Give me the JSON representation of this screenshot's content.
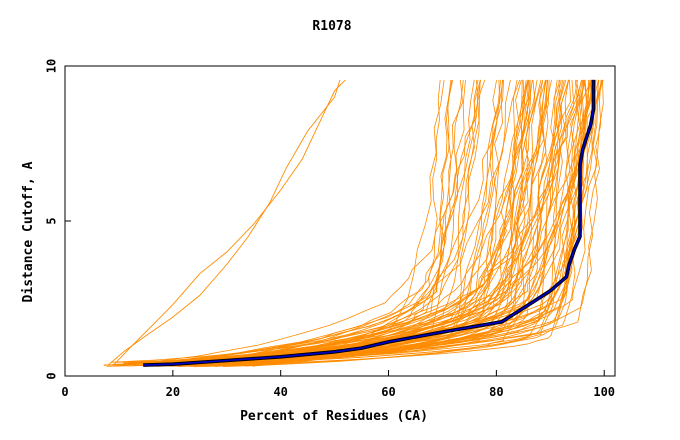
{
  "chart_data": {
    "type": "line",
    "title": "R1078",
    "xlabel": "Percent of Residues (CA)",
    "ylabel": "Distance Cutoff, A",
    "xlim": [
      0,
      102
    ],
    "ylim": [
      0,
      10
    ],
    "xticks": [
      "0",
      "20",
      "40",
      "60",
      "80",
      "100"
    ],
    "yticks": [
      "0",
      "5",
      "10"
    ],
    "grid": false,
    "colors": {
      "models": "#ff8c00",
      "highlight_outline": "#000000",
      "highlight": "#0000cc"
    },
    "highlight_series": {
      "x": [
        14.5,
        20,
        30,
        40,
        50,
        55,
        60,
        70,
        81,
        86,
        90,
        93,
        93.5,
        94.5,
        95.5,
        95.5,
        96,
        97.5,
        98,
        98
      ],
      "y": [
        0.35,
        0.38,
        0.5,
        0.62,
        0.78,
        0.9,
        1.1,
        1.42,
        1.75,
        2.3,
        2.75,
        3.2,
        3.6,
        4.1,
        4.5,
        6.8,
        7.3,
        8.1,
        8.6,
        9.55
      ]
    },
    "outlier_series": [
      {
        "x": [
          9,
          12,
          16,
          20,
          25,
          30,
          35,
          40,
          44,
          47,
          50,
          52
        ],
        "y": [
          0.35,
          0.9,
          1.6,
          2.3,
          3.3,
          4.0,
          4.9,
          6.0,
          7.0,
          8.1,
          9.2,
          9.55
        ]
      },
      {
        "x": [
          8,
          11,
          15,
          20,
          25,
          30,
          34,
          38,
          41,
          45,
          50,
          51
        ],
        "y": [
          0.35,
          0.8,
          1.3,
          1.9,
          2.6,
          3.6,
          4.5,
          5.6,
          6.7,
          7.9,
          9.0,
          9.55
        ]
      }
    ],
    "bundle": {
      "count": 90,
      "x_start_range": [
        7,
        35
      ],
      "x_end_range": [
        64,
        100
      ],
      "y_start_range": [
        0.3,
        0.45
      ],
      "y_end": 9.55
    }
  }
}
